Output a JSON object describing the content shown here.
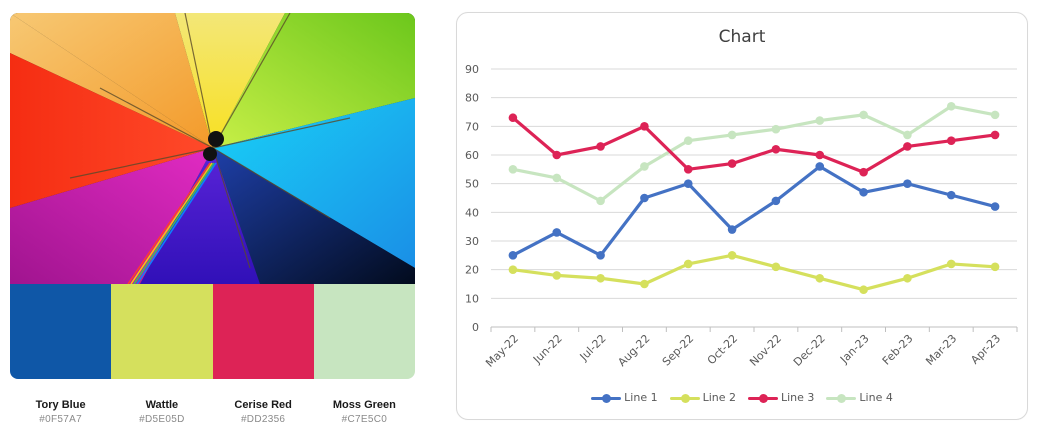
{
  "palette": {
    "colors": [
      {
        "name": "Tory Blue",
        "hex": "#0F57A7"
      },
      {
        "name": "Wattle",
        "hex": "#D5E05D"
      },
      {
        "name": "Cerise Red",
        "hex": "#DD2356"
      },
      {
        "name": "Moss Green",
        "hex": "#C7E5C0"
      }
    ]
  },
  "chart": {
    "title": "Chart",
    "legend": [
      "Line 1",
      "Line 2",
      "Line 3",
      "Line 4"
    ]
  },
  "chart_data": {
    "type": "line",
    "title": "Chart",
    "xlabel": "",
    "ylabel": "",
    "categories": [
      "May-22",
      "Jun-22",
      "Jul-22",
      "Aug-22",
      "Sep-22",
      "Oct-22",
      "Nov-22",
      "Dec-22",
      "Jan-23",
      "Feb-23",
      "Mar-23",
      "Apr-23"
    ],
    "yticks": [
      0,
      10,
      20,
      30,
      40,
      50,
      60,
      70,
      80,
      90
    ],
    "ylim": [
      0,
      90
    ],
    "grid": true,
    "legend_position": "bottom",
    "series": [
      {
        "name": "Line 1",
        "color": "#4472C4",
        "values": [
          25,
          33,
          25,
          45,
          50,
          34,
          44,
          56,
          47,
          50,
          46,
          42
        ]
      },
      {
        "name": "Line 2",
        "color": "#D5E05D",
        "values": [
          20,
          18,
          17,
          15,
          22,
          25,
          21,
          17,
          13,
          17,
          22,
          21
        ]
      },
      {
        "name": "Line 3",
        "color": "#DD2356",
        "values": [
          73,
          60,
          63,
          70,
          55,
          57,
          62,
          60,
          54,
          63,
          65,
          67
        ]
      },
      {
        "name": "Line 4",
        "color": "#C7E5C0",
        "values": [
          55,
          52,
          44,
          56,
          65,
          67,
          69,
          72,
          74,
          67,
          77,
          74
        ]
      }
    ]
  }
}
